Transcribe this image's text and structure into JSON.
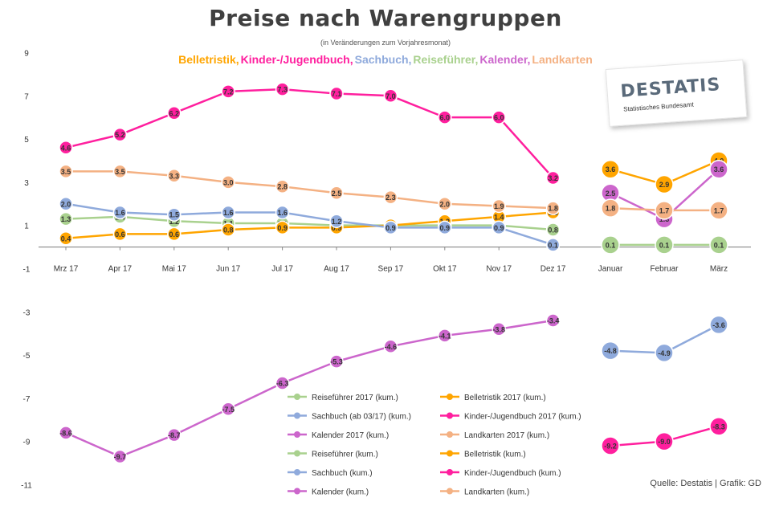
{
  "chart_data": {
    "type": "line",
    "title": "Preise nach Warengruppen",
    "subtitle": "(in Veränderungen zum Vorjahresmonat)",
    "series_names": [
      "Belletristik",
      "Kinder-/Jugendbuch",
      "Sachbuch",
      "Reiseführer",
      "Kalender",
      "Landkarten"
    ],
    "series_name_separator": ",",
    "x_categories": [
      "Mrz 17",
      "Apr 17",
      "Mai 17",
      "Jun 17",
      "Jul 17",
      "Aug 17",
      "Sep 17",
      "Okt 17",
      "Nov 17",
      "Dez 17",
      "Januar",
      "Februar",
      "März"
    ],
    "y_ticks": [
      9,
      7,
      5,
      3,
      1,
      -1,
      -3,
      -5,
      -7,
      -9,
      -11
    ],
    "ylim": [
      -11,
      9.5
    ],
    "grid": false,
    "colors": {
      "Reiseführer": "#a9d18e",
      "Belletristik": "#ffa500",
      "Sachbuch": "#8faadc",
      "Kinder-/Jugendbuch": "#ff1f9e",
      "Kalender": "#cc66cc",
      "Landkarten": "#f4b183"
    },
    "series": [
      {
        "name": "Reiseführer 2017 (kum.)",
        "color_key": "Reiseführer",
        "segment": "2017",
        "values": [
          1.3,
          1.4,
          1.2,
          1.1,
          1.1,
          1.0,
          1.0,
          1.0,
          1.0,
          0.8
        ],
        "labels": [
          "1.3",
          "1.4",
          "1.2",
          "1.1",
          "1.1",
          "1.0",
          "1.0",
          "1.0",
          "1.0",
          "0.8"
        ]
      },
      {
        "name": "Belletristik 2017 (kum.)",
        "color_key": "Belletristik",
        "segment": "2017",
        "values": [
          0.4,
          0.6,
          0.6,
          0.8,
          0.9,
          0.9,
          1.0,
          1.2,
          1.4,
          1.6
        ],
        "labels": [
          "0.4",
          "0.6",
          "0.6",
          "0.8",
          "0.9",
          "0.9",
          "1.0",
          "1.2",
          "1.4",
          "1.6"
        ]
      },
      {
        "name": "Sachbuch (ab 03/17) (kum.)",
        "color_key": "Sachbuch",
        "segment": "2017",
        "values": [
          2.0,
          1.6,
          1.5,
          1.6,
          1.6,
          1.2,
          0.9,
          0.9,
          0.9,
          0.1
        ],
        "labels": [
          "2.0",
          "1.6",
          "1.5",
          "1.6",
          "1.6",
          "1.2",
          "0.9",
          "0.9",
          "0.9",
          "0.1"
        ]
      },
      {
        "name": "Kinder-/Jugendbuch 2017 (kum.)",
        "color_key": "Kinder-/Jugendbuch",
        "segment": "2017",
        "values": [
          4.6,
          5.2,
          6.2,
          7.2,
          7.3,
          7.1,
          7.0,
          6.0,
          6.0,
          3.2
        ],
        "labels": [
          "4.6",
          "5.2",
          "6.2",
          "7.2",
          "7.3",
          "7.1",
          "7.0",
          "6.0",
          "6.0",
          "3.2"
        ]
      },
      {
        "name": "Kalender 2017 (kum.)",
        "color_key": "Kalender",
        "segment": "2017",
        "values": [
          -8.6,
          -9.7,
          -8.7,
          -7.5,
          -6.3,
          -5.3,
          -4.6,
          -4.1,
          -3.8,
          -3.4
        ],
        "labels": [
          "-8.6",
          "-9.7",
          "-8.7",
          "-7.5",
          "-6.3",
          "-5.3",
          "-4.6",
          "-4.1",
          "-3.8",
          "-3.4"
        ]
      },
      {
        "name": "Landkarten 2017 (kum.)",
        "color_key": "Landkarten",
        "segment": "2017",
        "values": [
          3.5,
          3.5,
          3.3,
          3.0,
          2.8,
          2.5,
          2.3,
          2.0,
          1.9,
          1.8
        ],
        "labels": [
          "3.5",
          "3.5",
          "3.3",
          "3.0",
          "2.8",
          "2.5",
          "2.3",
          "2.0",
          "1.9",
          "1.8"
        ]
      },
      {
        "name": "Reiseführer (kum.)",
        "color_key": "Reiseführer",
        "segment": "2018",
        "values": [
          0.1,
          0.1,
          0.1
        ],
        "labels": [
          "0.1",
          "0.1",
          "0.1"
        ]
      },
      {
        "name": "Belletristik (kum.)",
        "color_key": "Belletristik",
        "segment": "2018",
        "values": [
          3.6,
          2.9,
          4.0
        ],
        "labels": [
          "3.6",
          "2.9",
          "4.0"
        ]
      },
      {
        "name": "Sachbuch (kum.)",
        "color_key": "Sachbuch",
        "segment": "2018",
        "values": [
          -4.8,
          -4.9,
          -3.6
        ],
        "labels": [
          "-4.8",
          "-4.9",
          "-3.6"
        ]
      },
      {
        "name": "Kinder-/Jugendbuch (kum.)",
        "color_key": "Kinder-/Jugendbuch",
        "segment": "2018",
        "values": [
          -9.2,
          -9.0,
          -8.3
        ],
        "labels": [
          "-9.2",
          "-9.0",
          "-8.3"
        ]
      },
      {
        "name": "Kalender (kum.)",
        "color_key": "Kalender",
        "segment": "2018",
        "values": [
          2.5,
          1.3,
          3.6
        ],
        "labels": [
          "2.5",
          "1.3",
          "3.6"
        ]
      },
      {
        "name": "Landkarten (kum.)",
        "color_key": "Landkarten",
        "segment": "2018",
        "values": [
          1.8,
          1.7,
          1.7
        ],
        "labels": [
          "1.8",
          "1.7",
          "1.7"
        ]
      }
    ],
    "legend_position": "bottom-center",
    "legend_items": [
      "Reiseführer 2017 (kum.)",
      "Belletristik 2017 (kum.)",
      "Sachbuch (ab 03/17) (kum.)",
      "Kinder-/Jugendbuch 2017 (kum.)",
      "Kalender 2017 (kum.)",
      "Landkarten 2017 (kum.)",
      "Reiseführer (kum.)",
      "Belletristik (kum.)",
      "Sachbuch (kum.)",
      "Kinder-/Jugendbuch (kum.)",
      "Kalender (kum.)",
      "Landkarten (kum.)"
    ],
    "source": "Quelle: Destatis | Grafik: GD",
    "logo": {
      "text": "DESTATIS",
      "tagline": "Statistisches Bundesamt"
    }
  }
}
